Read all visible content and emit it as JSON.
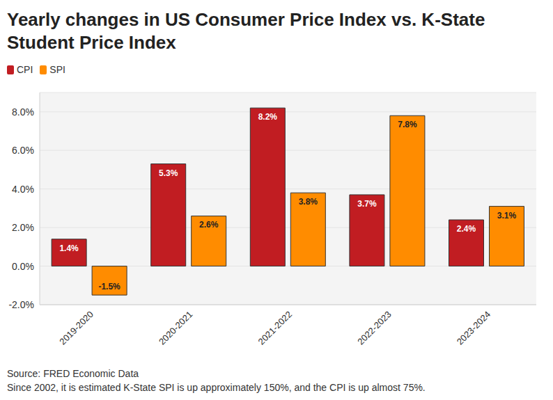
{
  "chart_data": {
    "type": "bar",
    "title": "Yearly changes in US Consumer Price Index vs. K-State Student Price Index",
    "categories": [
      "2019-2020",
      "2020-2021",
      "2021-2022",
      "2022-2023",
      "2023-2024"
    ],
    "series": [
      {
        "name": "CPI",
        "color": "#c11d22",
        "values": [
          1.4,
          5.3,
          8.2,
          3.7,
          2.4
        ],
        "value_labels": [
          "1.4%",
          "5.3%",
          "8.2%",
          "3.7%",
          "2.4%"
        ]
      },
      {
        "name": "SPI",
        "color": "#ff8c00",
        "values": [
          -1.5,
          2.6,
          3.8,
          7.8,
          3.1
        ],
        "value_labels": [
          "-1.5%",
          "2.6%",
          "3.8%",
          "7.8%",
          "3.1%"
        ]
      }
    ],
    "ylim": [
      -2,
      9
    ],
    "yticks": [
      {
        "value": -2,
        "label": "-2.0%"
      },
      {
        "value": 0,
        "label": "0.0%"
      },
      {
        "value": 2,
        "label": "2.0%"
      },
      {
        "value": 4,
        "label": "4.0%"
      },
      {
        "value": 6,
        "label": "6.0%"
      },
      {
        "value": 8,
        "label": "8.0%"
      }
    ],
    "grid": true,
    "legend": "top-left",
    "data_labels": true,
    "annotations": [
      "Source: FRED Economic Data",
      "Since 2002, it is estimated K-State SPI is up approximately 150%, and the CPI is up almost 75%."
    ]
  }
}
